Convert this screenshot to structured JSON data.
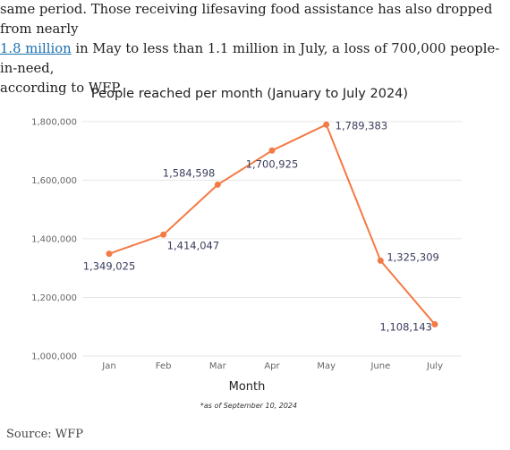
{
  "article": {
    "line1": "same period. Those receiving lifesaving food assistance has also dropped from nearly",
    "link_text": "1.8 million",
    "line2_rest": " in May to less than 1.1 million in July, a loss of 700,000 people-in-need,",
    "line3": "according to WFP."
  },
  "chart_data": {
    "type": "line",
    "title": "People reached per month (January to July 2024)",
    "xlabel": "Month",
    "ylabel": "",
    "note": "*as of September 10, 2024",
    "categories": [
      "Jan",
      "Feb",
      "Mar",
      "Apr",
      "May",
      "June",
      "July"
    ],
    "series": [
      {
        "values": [
          1349025,
          1414047,
          1584598,
          1700925,
          1789383,
          1325309,
          1108143
        ],
        "color": "#f47a45"
      }
    ],
    "data_labels": [
      "1,349,025",
      "1,414,047",
      "1,584,598",
      "1,700,925",
      "1,789,383",
      "1,325,309",
      "1,108,143"
    ],
    "yticks": [
      1000000,
      1200000,
      1400000,
      1600000,
      1800000
    ],
    "ytick_labels": [
      "1,000,000",
      "1,200,000",
      "1,400,000",
      "1,600,000",
      "1,800,000"
    ],
    "ylim": [
      1000000,
      1830000
    ],
    "grid": true
  },
  "source": "Source: WFP"
}
